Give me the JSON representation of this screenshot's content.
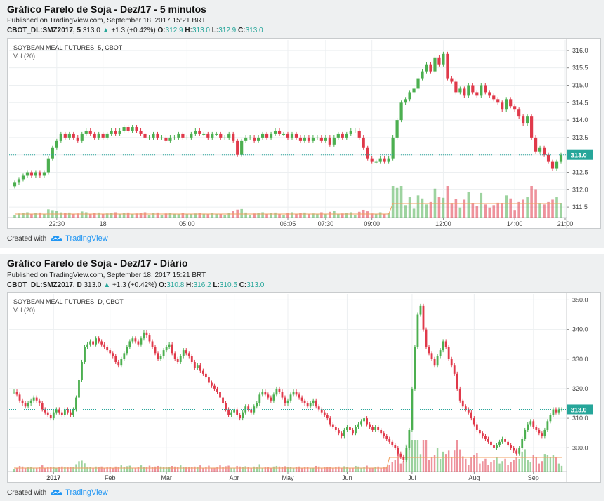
{
  "charts": [
    {
      "title": "Gráfico Farelo de Soja - Dez/17 - 5 minutos",
      "published": "Published on TradingView.com, September 18, 2017 15:21 BRT",
      "symbol": "CBOT_DL:SMZ2017, 5",
      "last": "313.0",
      "change": "+1.3 (+0.42%)",
      "o_label": "O:",
      "o": "312.9",
      "h_label": "H:",
      "h": "313.0",
      "l_label": "L:",
      "l": "312.9",
      "c_label": "C:",
      "c": "313.0",
      "legend_name": "SOYBEAN MEAL FUTURES, 5, CBOT",
      "legend_vol": "Vol (20)",
      "price_badge": "313.0",
      "credit_text": "Created with",
      "brand": "TradingView"
    },
    {
      "title": "Gráfico Farelo de Soja - Dez/17 - Diário",
      "published": "Published on TradingView.com, September 18, 2017 15:21 BRT",
      "symbol": "CBOT_DL:SMZ2017, D",
      "last": "313.0",
      "change": "+1.3 (+0.42%)",
      "o_label": "O:",
      "o": "310.8",
      "h_label": "H:",
      "h": "316.2",
      "l_label": "L:",
      "l": "310.5",
      "c_label": "C:",
      "c": "313.0",
      "legend_name": "SOYBEAN MEAL FUTURES, D, CBOT",
      "legend_vol": "Vol (20)",
      "price_badge": "313.0",
      "credit_text": "Created with",
      "brand": "TradingView"
    }
  ],
  "colors": {
    "up": "#4caf50",
    "down": "#e0394a",
    "vol_ma": "#f0a060",
    "last_line": "#26a69a",
    "brand": "#2196f3"
  },
  "chart_data": [
    {
      "type": "candlestick",
      "title": "Gráfico Farelo de Soja - Dez/17 - 5 minutos",
      "series_name": "SOYBEAN MEAL FUTURES, 5, CBOT",
      "ylim": [
        311.2,
        316.3
      ],
      "yticks": [
        "316.0",
        "315.5",
        "315.0",
        "314.5",
        "314.0",
        "313.5",
        "313.0",
        "312.5",
        "312.0",
        "311.5"
      ],
      "ytick_values": [
        316.0,
        315.5,
        315.0,
        314.5,
        314.0,
        313.5,
        313.0,
        312.5,
        312.0,
        311.5
      ],
      "xticks": [
        "22:30",
        "18",
        "05:00",
        "06:05",
        "07:30",
        "09:00",
        "12:00",
        "14:00",
        "21:00"
      ],
      "xtick_index": [
        10,
        21,
        41,
        65,
        74,
        85,
        102,
        119,
        131
      ],
      "last_price": 313.0,
      "n_bars": 131,
      "closes": [
        312.2,
        312.3,
        312.4,
        312.5,
        312.4,
        312.5,
        312.4,
        312.5,
        312.9,
        313.2,
        313.4,
        313.6,
        313.5,
        313.6,
        313.5,
        313.4,
        313.6,
        313.7,
        313.6,
        313.5,
        313.6,
        313.5,
        313.6,
        313.7,
        313.6,
        313.7,
        313.8,
        313.7,
        313.8,
        313.7,
        313.6,
        313.5,
        313.5,
        313.6,
        313.5,
        313.5,
        313.4,
        313.5,
        313.5,
        313.6,
        313.5,
        313.5,
        313.6,
        313.7,
        313.6,
        313.6,
        313.5,
        313.6,
        313.6,
        313.5,
        313.5,
        313.6,
        313.4,
        313.0,
        313.4,
        313.5,
        313.5,
        313.4,
        313.5,
        313.6,
        313.5,
        313.6,
        313.7,
        313.6,
        313.6,
        313.5,
        313.6,
        313.5,
        313.4,
        313.5,
        313.4,
        313.5,
        313.5,
        313.4,
        313.5,
        313.3,
        313.5,
        313.6,
        313.5,
        313.6,
        313.7,
        313.7,
        313.5,
        313.2,
        312.9,
        312.8,
        312.8,
        312.9,
        312.8,
        312.9,
        313.5,
        314.0,
        314.5,
        314.6,
        314.8,
        314.9,
        315.2,
        315.4,
        315.6,
        315.4,
        315.8,
        315.6,
        315.9,
        315.2,
        315.1,
        314.8,
        314.9,
        314.7,
        315.0,
        314.8,
        314.7,
        315.0,
        314.8,
        314.7,
        314.6,
        314.5,
        314.3,
        314.6,
        314.4,
        314.3,
        314.1,
        313.9,
        314.1,
        313.5,
        313.1,
        313.2,
        313.0,
        312.8,
        312.6,
        312.8,
        313.0
      ],
      "volume_ma_note": "Vol (20)"
    },
    {
      "type": "candlestick",
      "title": "Gráfico Farelo de Soja - Dez/17 - Diário",
      "series_name": "SOYBEAN MEAL FUTURES, D, CBOT",
      "ylim": [
        292,
        352
      ],
      "yticks": [
        "350.0",
        "340.0",
        "330.0",
        "320.0",
        "310.0",
        "300.0"
      ],
      "ytick_values": [
        350,
        340,
        330,
        320,
        310,
        300
      ],
      "xticks": [
        "2017",
        "Feb",
        "Mar",
        "Apr",
        "May",
        "Jun",
        "Jul",
        "Aug",
        "Sep"
      ],
      "xtick_index": [
        14,
        34,
        54,
        78,
        97,
        118,
        141,
        163,
        184
      ],
      "last_price": 313.0,
      "n_bars": 195,
      "closes": [
        319,
        318,
        316,
        315,
        314,
        315,
        316,
        317,
        316,
        315,
        313,
        312,
        311,
        310,
        312,
        313,
        312,
        311,
        313,
        312,
        311,
        313,
        317,
        323,
        329,
        334,
        335,
        336,
        335,
        337,
        336,
        335,
        334,
        333,
        332,
        331,
        329,
        328,
        330,
        332,
        334,
        336,
        337,
        336,
        335,
        337,
        339,
        338,
        336,
        334,
        332,
        330,
        331,
        333,
        334,
        335,
        332,
        330,
        329,
        331,
        333,
        332,
        331,
        329,
        327,
        328,
        326,
        325,
        324,
        322,
        321,
        320,
        319,
        317,
        315,
        313,
        311,
        312,
        313,
        311,
        310,
        312,
        314,
        313,
        312,
        314,
        315,
        318,
        319,
        318,
        317,
        316,
        318,
        320,
        319,
        317,
        315,
        316,
        318,
        319,
        318,
        317,
        316,
        315,
        314,
        315,
        316,
        314,
        313,
        312,
        311,
        310,
        308,
        307,
        306,
        305,
        304,
        306,
        307,
        306,
        305,
        307,
        308,
        309,
        310,
        308,
        307,
        306,
        307,
        306,
        305,
        304,
        303,
        302,
        301,
        300,
        298,
        297,
        296,
        300,
        306,
        320,
        334,
        345,
        348,
        340,
        334,
        332,
        330,
        328,
        331,
        333,
        336,
        334,
        330,
        328,
        325,
        320,
        316,
        314,
        313,
        312,
        310,
        308,
        306,
        305,
        304,
        303,
        302,
        301,
        300,
        301,
        302,
        303,
        302,
        301,
        300,
        299,
        298,
        300,
        303,
        306,
        308,
        309,
        307,
        306,
        305,
        304,
        306,
        309,
        311,
        313,
        312,
        313,
        313
      ]
    }
  ]
}
